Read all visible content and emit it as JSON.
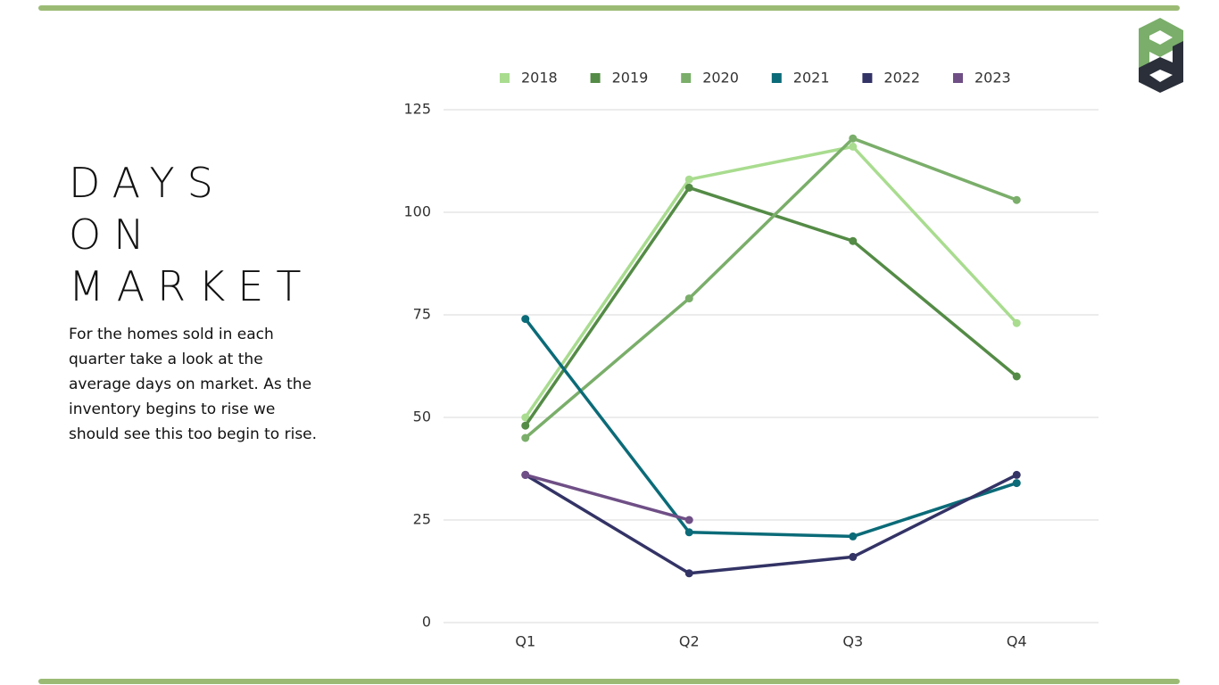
{
  "slide": {
    "title_lines": [
      "DAYS",
      "ON",
      "MARKET"
    ],
    "body": "For the homes sold in each quarter take a look at the average days on market.  As the inventory begins to rise we should see this too begin to rise."
  },
  "chart_data": {
    "type": "line",
    "categories": [
      "Q1",
      "Q2",
      "Q3",
      "Q4"
    ],
    "series": [
      {
        "name": "2018",
        "color": "#a9dc8f",
        "values": [
          50,
          108,
          116,
          73
        ]
      },
      {
        "name": "2019",
        "color": "#548b46",
        "values": [
          48,
          106,
          93,
          60
        ]
      },
      {
        "name": "2020",
        "color": "#7aae6a",
        "values": [
          45,
          79,
          118,
          103
        ]
      },
      {
        "name": "2021",
        "color": "#0b6b78",
        "values": [
          74,
          22,
          21,
          34
        ]
      },
      {
        "name": "2022",
        "color": "#333366",
        "values": [
          36,
          12,
          16,
          36
        ]
      },
      {
        "name": "2023",
        "color": "#6f4f86",
        "values": [
          36,
          25,
          null,
          null
        ]
      }
    ],
    "ylim": [
      0,
      125
    ],
    "yticks": [
      0,
      25,
      50,
      75,
      100,
      125
    ],
    "grid": true,
    "legend": "top"
  }
}
